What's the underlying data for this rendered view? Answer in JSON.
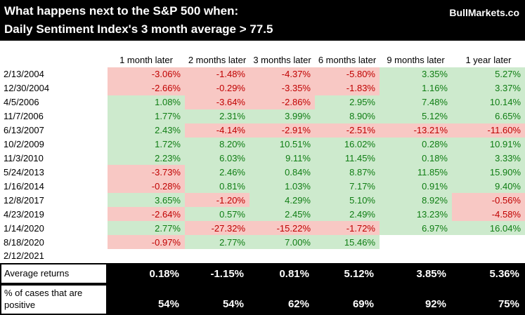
{
  "banner": {
    "title_line1": "What happens next to the S&P 500 when:",
    "title_line2": "Daily Sentiment Index's 3 month average > 77.5",
    "brand": "BullMarkets.co"
  },
  "chart_data": {
    "type": "table",
    "columns": [
      "1 month later",
      "2 months later",
      "3 months later",
      "6 months later",
      "9 months later",
      "1 year later"
    ],
    "rows": [
      {
        "date": "2/13/2004",
        "values": [
          "-3.06%",
          "-1.48%",
          "-4.37%",
          "-5.80%",
          "3.35%",
          "5.27%"
        ]
      },
      {
        "date": "12/30/2004",
        "values": [
          "-2.66%",
          "-0.29%",
          "-3.35%",
          "-1.83%",
          "1.16%",
          "3.37%"
        ]
      },
      {
        "date": "4/5/2006",
        "values": [
          "1.08%",
          "-3.64%",
          "-2.86%",
          "2.95%",
          "7.48%",
          "10.14%"
        ]
      },
      {
        "date": "11/7/2006",
        "values": [
          "1.77%",
          "2.31%",
          "3.99%",
          "8.90%",
          "5.12%",
          "6.65%"
        ]
      },
      {
        "date": "6/13/2007",
        "values": [
          "2.43%",
          "-4.14%",
          "-2.91%",
          "-2.51%",
          "-13.21%",
          "-11.60%"
        ]
      },
      {
        "date": "10/2/2009",
        "values": [
          "1.72%",
          "8.20%",
          "10.51%",
          "16.02%",
          "0.28%",
          "10.91%"
        ]
      },
      {
        "date": "11/3/2010",
        "values": [
          "2.23%",
          "6.03%",
          "9.11%",
          "11.45%",
          "0.18%",
          "3.33%"
        ]
      },
      {
        "date": "5/24/2013",
        "values": [
          "-3.73%",
          "2.46%",
          "0.84%",
          "8.87%",
          "11.85%",
          "15.90%"
        ]
      },
      {
        "date": "1/16/2014",
        "values": [
          "-0.28%",
          "0.81%",
          "1.03%",
          "7.17%",
          "0.91%",
          "9.40%"
        ]
      },
      {
        "date": "12/8/2017",
        "values": [
          "3.65%",
          "-1.20%",
          "4.29%",
          "5.10%",
          "8.92%",
          "-0.56%"
        ]
      },
      {
        "date": "4/23/2019",
        "values": [
          "-2.64%",
          "0.57%",
          "2.45%",
          "2.49%",
          "13.23%",
          "-4.58%"
        ]
      },
      {
        "date": "1/14/2020",
        "values": [
          "2.77%",
          "-27.32%",
          "-15.22%",
          "-1.72%",
          "6.97%",
          "16.04%"
        ]
      },
      {
        "date": "8/18/2020",
        "values": [
          "-0.97%",
          "2.77%",
          "7.00%",
          "15.46%",
          "",
          ""
        ]
      },
      {
        "date": "2/12/2021",
        "values": [
          "",
          "",
          "",
          "",
          "",
          ""
        ]
      }
    ],
    "summary": {
      "avg_label": "Average returns",
      "avg_values": [
        "0.18%",
        "-1.15%",
        "0.81%",
        "5.12%",
        "3.85%",
        "5.36%"
      ],
      "pct_label": "% of cases that are positive",
      "pct_values": [
        "54%",
        "54%",
        "62%",
        "69%",
        "92%",
        "75%"
      ]
    }
  },
  "colors": {
    "banner_bg": "#000000",
    "banner_text": "#ffffff",
    "positive_fill": "#cdeacd",
    "positive_text": "#0f7d13",
    "negative_fill": "#f8c8c4",
    "negative_text": "#c00000",
    "footer_bg": "#000000",
    "footer_text": "#ffffff"
  }
}
